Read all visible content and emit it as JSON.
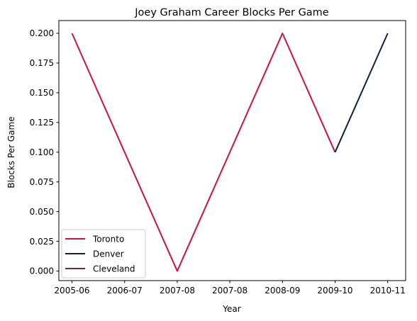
{
  "chart_data": {
    "type": "line",
    "title": "Joey Graham Career Blocks Per Game",
    "xlabel": "Year",
    "ylabel": "Blocks Per Game",
    "x_categories": [
      "2005-06",
      "2006-07",
      "2007-08",
      "2007-08",
      "2008-09",
      "2009-10",
      "2010-11"
    ],
    "ylim": [
      -0.01,
      0.21
    ],
    "y_ticks": [
      "0.000",
      "0.025",
      "0.050",
      "0.075",
      "0.100",
      "0.125",
      "0.150",
      "0.175",
      "0.200"
    ],
    "y_tick_values": [
      0,
      0.025,
      0.05,
      0.075,
      0.1,
      0.125,
      0.15,
      0.175,
      0.2
    ],
    "grid": false,
    "legend_position": "lower-left",
    "series": [
      {
        "name": "Toronto",
        "color": "#ce1141",
        "points": [
          {
            "x": "2005-06",
            "y": 0.2
          },
          {
            "x": "2006-07",
            "y": 0.1
          },
          {
            "x": "2007-08",
            "y": 0.0
          },
          {
            "x": "2008-09",
            "y": 0.2
          },
          {
            "x": "2009-10",
            "y": 0.1
          }
        ]
      },
      {
        "name": "Denver",
        "color": "#0e2240",
        "points": [
          {
            "x": "2009-10",
            "y": 0.1
          },
          {
            "x": "2010-11",
            "y": 0.2
          }
        ]
      },
      {
        "name": "Cleveland",
        "color": "#6f263d",
        "points": []
      }
    ]
  }
}
